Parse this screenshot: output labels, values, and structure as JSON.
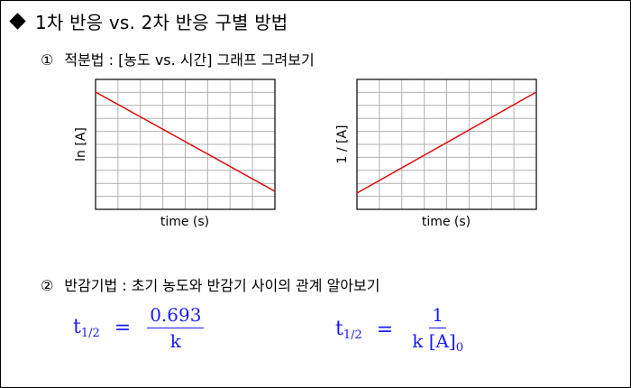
{
  "title": "1차 반응 vs. 2차 반응 구별 방법",
  "section1": {
    "marker": "①",
    "text": "적분법 : [농도 vs. 시간] 그래프 그려보기"
  },
  "plot1": {
    "ylabel": "ln [A]",
    "xlabel": "time (s)",
    "trend": "decreasing-linear",
    "line_color": "#e00000"
  },
  "plot2": {
    "ylabel": "1 / [A]",
    "xlabel": "time (s)",
    "trend": "increasing-linear",
    "line_color": "#e00000"
  },
  "section2": {
    "marker": "②",
    "text": "반감기법 : 초기 농도와 반감기 사이의 관계 알아보기"
  },
  "formula1": {
    "lhs": "t",
    "lhs_sub": "1/2",
    "eq": "=",
    "numerator": "0.693",
    "denominator": "k"
  },
  "formula2": {
    "lhs": "t",
    "lhs_sub": "1/2",
    "eq": "=",
    "numerator": "1",
    "den_k": "k",
    "den_A": "[A]",
    "den_sub": "0"
  },
  "colors": {
    "formula": "#1a1aff",
    "line": "#e00000",
    "grid": "#b0b0b0"
  }
}
